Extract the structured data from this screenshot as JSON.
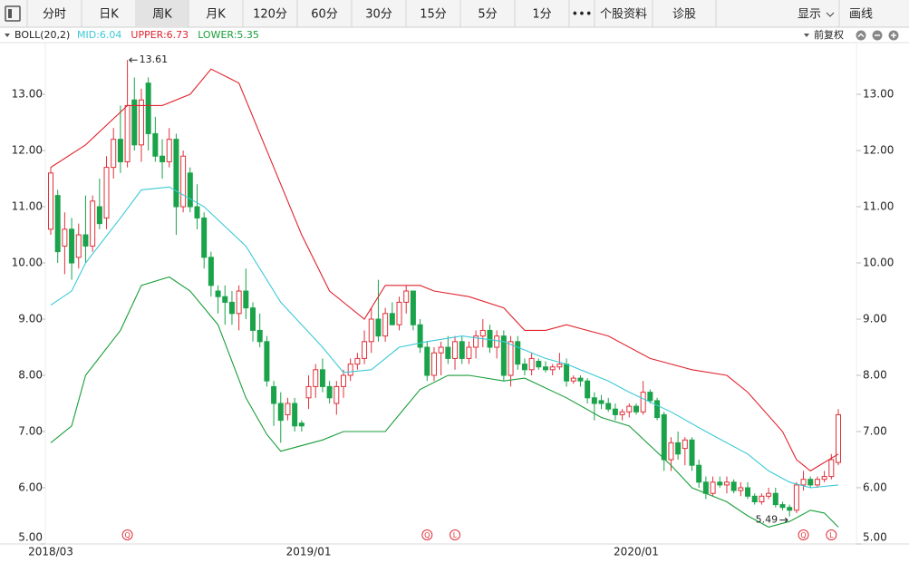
{
  "toolbar": {
    "tabs": [
      "分时",
      "日K",
      "周K",
      "月K",
      "120分",
      "60分",
      "30分",
      "15分",
      "5分",
      "1分",
      "•••",
      "个股资料",
      "诊股"
    ],
    "active_tab": 2,
    "right": [
      "显示",
      "画线"
    ]
  },
  "indicator": {
    "name": "BOLL(20,2)",
    "adjust": "前复权"
  },
  "chart_data": {
    "type": "candlestick",
    "up_color": "#e0303a",
    "down_color": "#1aa34a",
    "categories": [
      "2018/03",
      null,
      null,
      null,
      null,
      null,
      null,
      null,
      null,
      null,
      null,
      null,
      null,
      null,
      null,
      null,
      null,
      null,
      null,
      null,
      null,
      null,
      null,
      null,
      null,
      null,
      null,
      null,
      null,
      null,
      null,
      null,
      null,
      null,
      null,
      null,
      null,
      "2019/01",
      null,
      null,
      null,
      null,
      null,
      null,
      null,
      null,
      null,
      null,
      null,
      null,
      null,
      null,
      null,
      null,
      null,
      null,
      null,
      null,
      null,
      null,
      null,
      null,
      null,
      null,
      null,
      null,
      null,
      null,
      null,
      null,
      null,
      null,
      null,
      null,
      null,
      null,
      null,
      null,
      null,
      null,
      null,
      null,
      null,
      null,
      "2020/01",
      null,
      null,
      null,
      null,
      null,
      null,
      null,
      null,
      null,
      null,
      null,
      null,
      null,
      null,
      null,
      null,
      null,
      null,
      null,
      null,
      null,
      null,
      null,
      null,
      null,
      null,
      null,
      null,
      null
    ],
    "ohlc": [
      [
        10.6,
        11.7,
        10.5,
        11.6
      ],
      [
        11.2,
        11.3,
        10.0,
        10.2
      ],
      [
        10.3,
        10.9,
        9.8,
        10.6
      ],
      [
        10.6,
        10.8,
        9.7,
        10.0
      ],
      [
        10.1,
        10.7,
        9.9,
        10.5
      ],
      [
        10.5,
        11.2,
        10.0,
        10.3
      ],
      [
        10.3,
        11.2,
        10.2,
        11.1
      ],
      [
        11.0,
        11.5,
        10.6,
        10.7
      ],
      [
        10.8,
        11.9,
        10.6,
        11.7
      ],
      [
        11.7,
        12.4,
        11.5,
        12.2
      ],
      [
        12.2,
        12.8,
        11.6,
        11.8
      ],
      [
        11.8,
        13.61,
        11.7,
        12.8
      ],
      [
        12.9,
        13.3,
        12.0,
        12.1
      ],
      [
        12.1,
        13.1,
        11.8,
        12.9
      ],
      [
        13.2,
        13.3,
        12.0,
        12.3
      ],
      [
        12.3,
        12.6,
        11.8,
        11.9
      ],
      [
        11.9,
        12.2,
        11.5,
        11.8
      ],
      [
        11.8,
        12.4,
        11.7,
        12.2
      ],
      [
        12.2,
        12.3,
        10.5,
        11.0
      ],
      [
        11.0,
        12.0,
        10.9,
        11.9
      ],
      [
        11.6,
        11.7,
        10.9,
        11.0
      ],
      [
        11.0,
        11.4,
        10.6,
        10.8
      ],
      [
        10.8,
        10.9,
        9.9,
        10.1
      ],
      [
        10.1,
        10.2,
        9.4,
        9.6
      ],
      [
        9.5,
        9.6,
        9.1,
        9.4
      ],
      [
        9.4,
        9.6,
        8.9,
        9.3
      ],
      [
        9.3,
        9.5,
        8.9,
        9.1
      ],
      [
        9.1,
        9.6,
        8.8,
        9.5
      ],
      [
        9.5,
        9.9,
        9.0,
        9.2
      ],
      [
        9.2,
        9.3,
        8.6,
        8.8
      ],
      [
        8.8,
        9.1,
        8.5,
        8.6
      ],
      [
        8.6,
        8.7,
        7.8,
        7.9
      ],
      [
        7.8,
        7.9,
        7.1,
        7.5
      ],
      [
        7.5,
        7.7,
        6.8,
        7.2
      ],
      [
        7.3,
        7.6,
        7.2,
        7.5
      ],
      [
        7.5,
        7.6,
        7.0,
        7.1
      ],
      [
        7.15,
        7.2,
        7.0,
        7.1
      ],
      [
        7.6,
        8.0,
        7.4,
        7.8
      ],
      [
        7.8,
        8.2,
        7.6,
        8.1
      ],
      [
        8.1,
        8.3,
        7.7,
        7.8
      ],
      [
        7.8,
        7.9,
        7.5,
        7.6
      ],
      [
        7.5,
        7.9,
        7.3,
        7.8
      ],
      [
        7.8,
        8.1,
        7.6,
        8.0
      ],
      [
        8.0,
        8.3,
        7.9,
        8.2
      ],
      [
        8.2,
        8.4,
        8.1,
        8.3
      ],
      [
        8.3,
        8.8,
        8.2,
        8.6
      ],
      [
        8.6,
        9.2,
        8.4,
        9.0
      ],
      [
        9.0,
        9.7,
        8.6,
        8.7
      ],
      [
        8.7,
        9.2,
        8.6,
        9.1
      ],
      [
        9.1,
        9.3,
        8.9,
        8.9
      ],
      [
        8.9,
        9.4,
        8.8,
        9.3
      ],
      [
        9.3,
        9.6,
        9.1,
        9.5
      ],
      [
        9.5,
        9.5,
        8.8,
        8.9
      ],
      [
        8.9,
        9.0,
        8.4,
        8.5
      ],
      [
        8.5,
        8.6,
        7.9,
        8.0
      ],
      [
        8.0,
        8.5,
        7.9,
        8.4
      ],
      [
        8.4,
        8.6,
        8.0,
        8.5
      ],
      [
        8.5,
        8.7,
        8.2,
        8.3
      ],
      [
        8.3,
        8.7,
        8.1,
        8.6
      ],
      [
        8.6,
        8.7,
        8.2,
        8.3
      ],
      [
        8.3,
        8.6,
        8.2,
        8.5
      ],
      [
        8.5,
        8.8,
        8.3,
        8.7
      ],
      [
        8.7,
        9.0,
        8.5,
        8.8
      ],
      [
        8.8,
        8.9,
        8.4,
        8.5
      ],
      [
        8.5,
        8.8,
        8.3,
        8.7
      ],
      [
        8.7,
        8.8,
        7.9,
        8.0
      ],
      [
        8.0,
        8.7,
        7.8,
        8.6
      ],
      [
        8.6,
        8.7,
        8.1,
        8.2
      ],
      [
        8.2,
        8.3,
        8.0,
        8.1
      ],
      [
        8.1,
        8.4,
        8.0,
        8.3
      ],
      [
        8.25,
        8.3,
        8.1,
        8.15
      ],
      [
        8.15,
        8.25,
        8.05,
        8.1
      ],
      [
        8.1,
        8.2,
        8.0,
        8.15
      ],
      [
        8.15,
        8.4,
        8.1,
        8.2
      ],
      [
        8.2,
        8.3,
        7.8,
        7.9
      ],
      [
        7.9,
        8.0,
        7.85,
        7.95
      ],
      [
        7.95,
        8.0,
        7.8,
        7.9
      ],
      [
        7.9,
        7.95,
        7.5,
        7.6
      ],
      [
        7.6,
        7.7,
        7.2,
        7.5
      ],
      [
        7.55,
        7.65,
        7.4,
        7.5
      ],
      [
        7.5,
        7.6,
        7.35,
        7.4
      ],
      [
        7.4,
        7.5,
        7.2,
        7.3
      ],
      [
        7.3,
        7.4,
        7.2,
        7.35
      ],
      [
        7.35,
        7.5,
        7.25,
        7.45
      ],
      [
        7.45,
        7.5,
        7.3,
        7.35
      ],
      [
        7.35,
        7.9,
        7.3,
        7.7
      ],
      [
        7.7,
        7.75,
        7.5,
        7.55
      ],
      [
        7.55,
        7.6,
        7.2,
        7.25
      ],
      [
        7.3,
        7.35,
        6.3,
        6.5
      ],
      [
        6.5,
        6.9,
        6.3,
        6.8
      ],
      [
        6.8,
        7.0,
        6.5,
        6.6
      ],
      [
        6.7,
        6.9,
        6.4,
        6.85
      ],
      [
        6.85,
        6.9,
        6.3,
        6.4
      ],
      [
        6.4,
        6.5,
        6.0,
        6.1
      ],
      [
        6.1,
        6.2,
        5.8,
        5.9
      ],
      [
        5.9,
        6.2,
        5.85,
        6.1
      ],
      [
        6.1,
        6.2,
        6.0,
        6.05
      ],
      [
        6.05,
        6.2,
        5.9,
        6.1
      ],
      [
        6.1,
        6.15,
        5.9,
        5.95
      ],
      [
        5.95,
        6.1,
        5.85,
        6.0
      ],
      [
        6.0,
        6.1,
        5.8,
        5.85
      ],
      [
        5.85,
        5.9,
        5.7,
        5.75
      ],
      [
        5.75,
        5.9,
        5.7,
        5.85
      ],
      [
        5.85,
        6.0,
        5.8,
        5.9
      ],
      [
        5.9,
        6.0,
        5.65,
        5.7
      ],
      [
        5.7,
        5.75,
        5.6,
        5.65
      ],
      [
        5.65,
        5.7,
        5.49,
        5.6
      ],
      [
        5.6,
        6.1,
        5.55,
        6.05
      ],
      [
        6.05,
        6.3,
        5.95,
        6.15
      ],
      [
        6.15,
        6.2,
        6.0,
        6.05
      ],
      [
        6.05,
        6.2,
        6.0,
        6.15
      ],
      [
        6.15,
        6.3,
        6.1,
        6.2
      ],
      [
        6.2,
        6.6,
        6.15,
        6.5
      ],
      [
        6.45,
        7.4,
        6.4,
        7.3
      ]
    ],
    "max_index": 11,
    "min_index": 106,
    "series": [
      {
        "name": "MID:6.04",
        "color": "#3cc9d6",
        "x": [
          0,
          3,
          5,
          10,
          13,
          17,
          22,
          28,
          33,
          39,
          42,
          46,
          50,
          54,
          59,
          65,
          71,
          74,
          80,
          83,
          89,
          94,
          100,
          103,
          106,
          109,
          113
        ],
        "values": [
          9.25,
          9.5,
          10.0,
          10.8,
          11.3,
          11.35,
          11.0,
          10.3,
          9.3,
          8.5,
          8.05,
          8.1,
          8.5,
          8.6,
          8.7,
          8.6,
          8.3,
          8.2,
          7.9,
          7.7,
          7.35,
          7.0,
          6.6,
          6.3,
          6.1,
          6.0,
          6.05
        ]
      },
      {
        "name": "UPPER:6.73",
        "color": "#e0242e",
        "x": [
          0,
          5,
          11,
          16,
          20,
          23,
          27,
          31,
          36,
          40,
          45,
          48,
          53,
          55,
          60,
          65,
          68,
          71,
          74,
          80,
          86,
          92,
          97,
          100,
          105,
          107,
          109,
          113
        ],
        "values": [
          11.7,
          12.1,
          12.8,
          12.8,
          13.0,
          13.45,
          13.2,
          12.0,
          10.5,
          9.5,
          9.0,
          9.6,
          9.6,
          9.5,
          9.4,
          9.2,
          8.8,
          8.8,
          8.9,
          8.7,
          8.3,
          8.1,
          8.0,
          7.7,
          7.0,
          6.5,
          6.3,
          6.6
        ]
      },
      {
        "name": "LOWER:5.35",
        "color": "#1a9e3a",
        "x": [
          0,
          3,
          5,
          10,
          13,
          17,
          20,
          24,
          28,
          31,
          33,
          39,
          42,
          48,
          50,
          53,
          57,
          60,
          65,
          68,
          74,
          79,
          83,
          89,
          92,
          97,
          100,
          103,
          106,
          109,
          111,
          113
        ],
        "values": [
          6.8,
          7.1,
          8.0,
          8.8,
          9.6,
          9.75,
          9.5,
          8.9,
          7.6,
          6.95,
          6.65,
          6.85,
          7.0,
          7.0,
          7.3,
          7.75,
          8.0,
          8.0,
          7.9,
          7.95,
          7.6,
          7.25,
          7.1,
          6.4,
          6.0,
          5.75,
          5.5,
          5.3,
          5.4,
          5.6,
          5.55,
          5.3
        ]
      }
    ],
    "markers": [
      {
        "index": 11,
        "label": "Q"
      },
      {
        "index": 54,
        "label": "Q"
      },
      {
        "index": 58,
        "label": "L"
      },
      {
        "index": 108,
        "label": "Q"
      },
      {
        "index": 112,
        "label": "L"
      }
    ],
    "ylim": [
      5,
      13.92
    ],
    "yticks": [
      {
        "value": 13,
        "label": "13.00"
      },
      {
        "value": 12,
        "label": "12.00"
      },
      {
        "value": 11,
        "label": "11.00"
      },
      {
        "value": 10,
        "label": "10.00"
      },
      {
        "value": 9,
        "label": "9.00"
      },
      {
        "value": 8,
        "label": "8.00"
      },
      {
        "value": 7,
        "label": "7.00"
      },
      {
        "value": 6,
        "label": "6.00"
      },
      {
        "value": 5,
        "label": "5.00"
      }
    ]
  }
}
